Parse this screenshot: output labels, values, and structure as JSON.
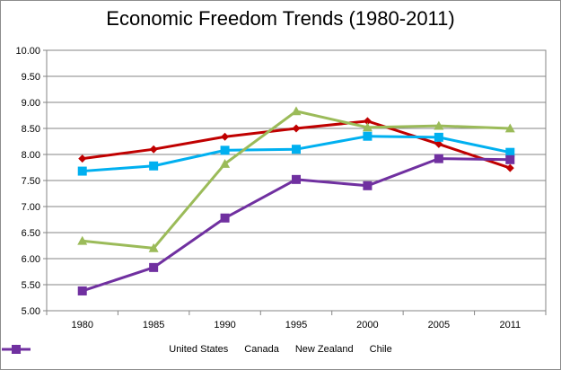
{
  "chart_data": {
    "type": "line",
    "title": "Economic Freedom Trends (1980-2011)",
    "xlabel": "",
    "ylabel": "",
    "categories": [
      "1980",
      "1985",
      "1990",
      "1995",
      "2000",
      "2005",
      "2011"
    ],
    "ylim": [
      5.0,
      10.0
    ],
    "yticks": [
      "5.00",
      "5.50",
      "6.00",
      "6.50",
      "7.00",
      "7.50",
      "8.00",
      "8.50",
      "9.00",
      "9.50",
      "10.00"
    ],
    "grid": true,
    "legend_position": "bottom",
    "series": [
      {
        "name": "United States",
        "color": "#c00000",
        "marker": "diamond",
        "values": [
          7.92,
          8.1,
          8.34,
          8.5,
          8.64,
          8.2,
          7.74
        ]
      },
      {
        "name": "Canada",
        "color": "#00b0f0",
        "marker": "square",
        "values": [
          7.68,
          7.78,
          8.08,
          8.1,
          8.35,
          8.33,
          8.04
        ]
      },
      {
        "name": "New Zealand",
        "color": "#9bbb59",
        "marker": "triangle",
        "values": [
          6.34,
          6.2,
          7.82,
          8.83,
          8.52,
          8.55,
          8.5
        ]
      },
      {
        "name": "Chile",
        "color": "#7030a0",
        "marker": "square",
        "values": [
          5.38,
          5.83,
          6.78,
          7.52,
          7.4,
          7.92,
          7.9
        ]
      }
    ]
  }
}
